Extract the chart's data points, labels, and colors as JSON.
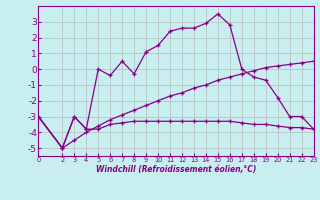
{
  "xlabel": "Windchill (Refroidissement éolien,°C)",
  "background_color": "#c8eef0",
  "grid_color": "#b0b0b0",
  "line_color": "#880088",
  "x_values": [
    0,
    2,
    3,
    4,
    5,
    6,
    7,
    8,
    9,
    10,
    11,
    12,
    13,
    14,
    15,
    16,
    17,
    18,
    19,
    20,
    21,
    22,
    23
  ],
  "series1": [
    -3.0,
    -5.0,
    -3.0,
    -3.8,
    0.0,
    -0.4,
    0.5,
    -0.3,
    1.1,
    1.5,
    2.4,
    2.6,
    2.6,
    2.9,
    3.5,
    2.8,
    0.0,
    -0.5,
    -0.7,
    -1.8,
    -3.0,
    -3.0,
    -3.8
  ],
  "series2": [
    -3.0,
    -5.0,
    -3.0,
    -3.8,
    -3.8,
    -3.5,
    -3.4,
    -3.3,
    -3.3,
    -3.3,
    -3.3,
    -3.3,
    -3.3,
    -3.3,
    -3.3,
    -3.3,
    -3.4,
    -3.5,
    -3.5,
    -3.6,
    -3.7,
    -3.7,
    -3.8
  ],
  "series3": [
    -3.0,
    -5.0,
    -4.5,
    -4.0,
    -3.6,
    -3.2,
    -2.9,
    -2.6,
    -2.3,
    -2.0,
    -1.7,
    -1.5,
    -1.2,
    -1.0,
    -0.7,
    -0.5,
    -0.3,
    -0.1,
    0.1,
    0.2,
    0.3,
    0.4,
    0.5
  ],
  "ylim": [
    -5.5,
    4.0
  ],
  "xlim": [
    0,
    23
  ],
  "yticks": [
    -5,
    -4,
    -3,
    -2,
    -1,
    0,
    1,
    2,
    3
  ],
  "xticks": [
    0,
    2,
    3,
    4,
    5,
    6,
    7,
    8,
    9,
    10,
    11,
    12,
    13,
    14,
    15,
    16,
    17,
    18,
    19,
    20,
    21,
    22,
    23
  ],
  "xlabel_fontsize": 5.5,
  "ytick_fontsize": 6.5,
  "xtick_fontsize": 4.8
}
